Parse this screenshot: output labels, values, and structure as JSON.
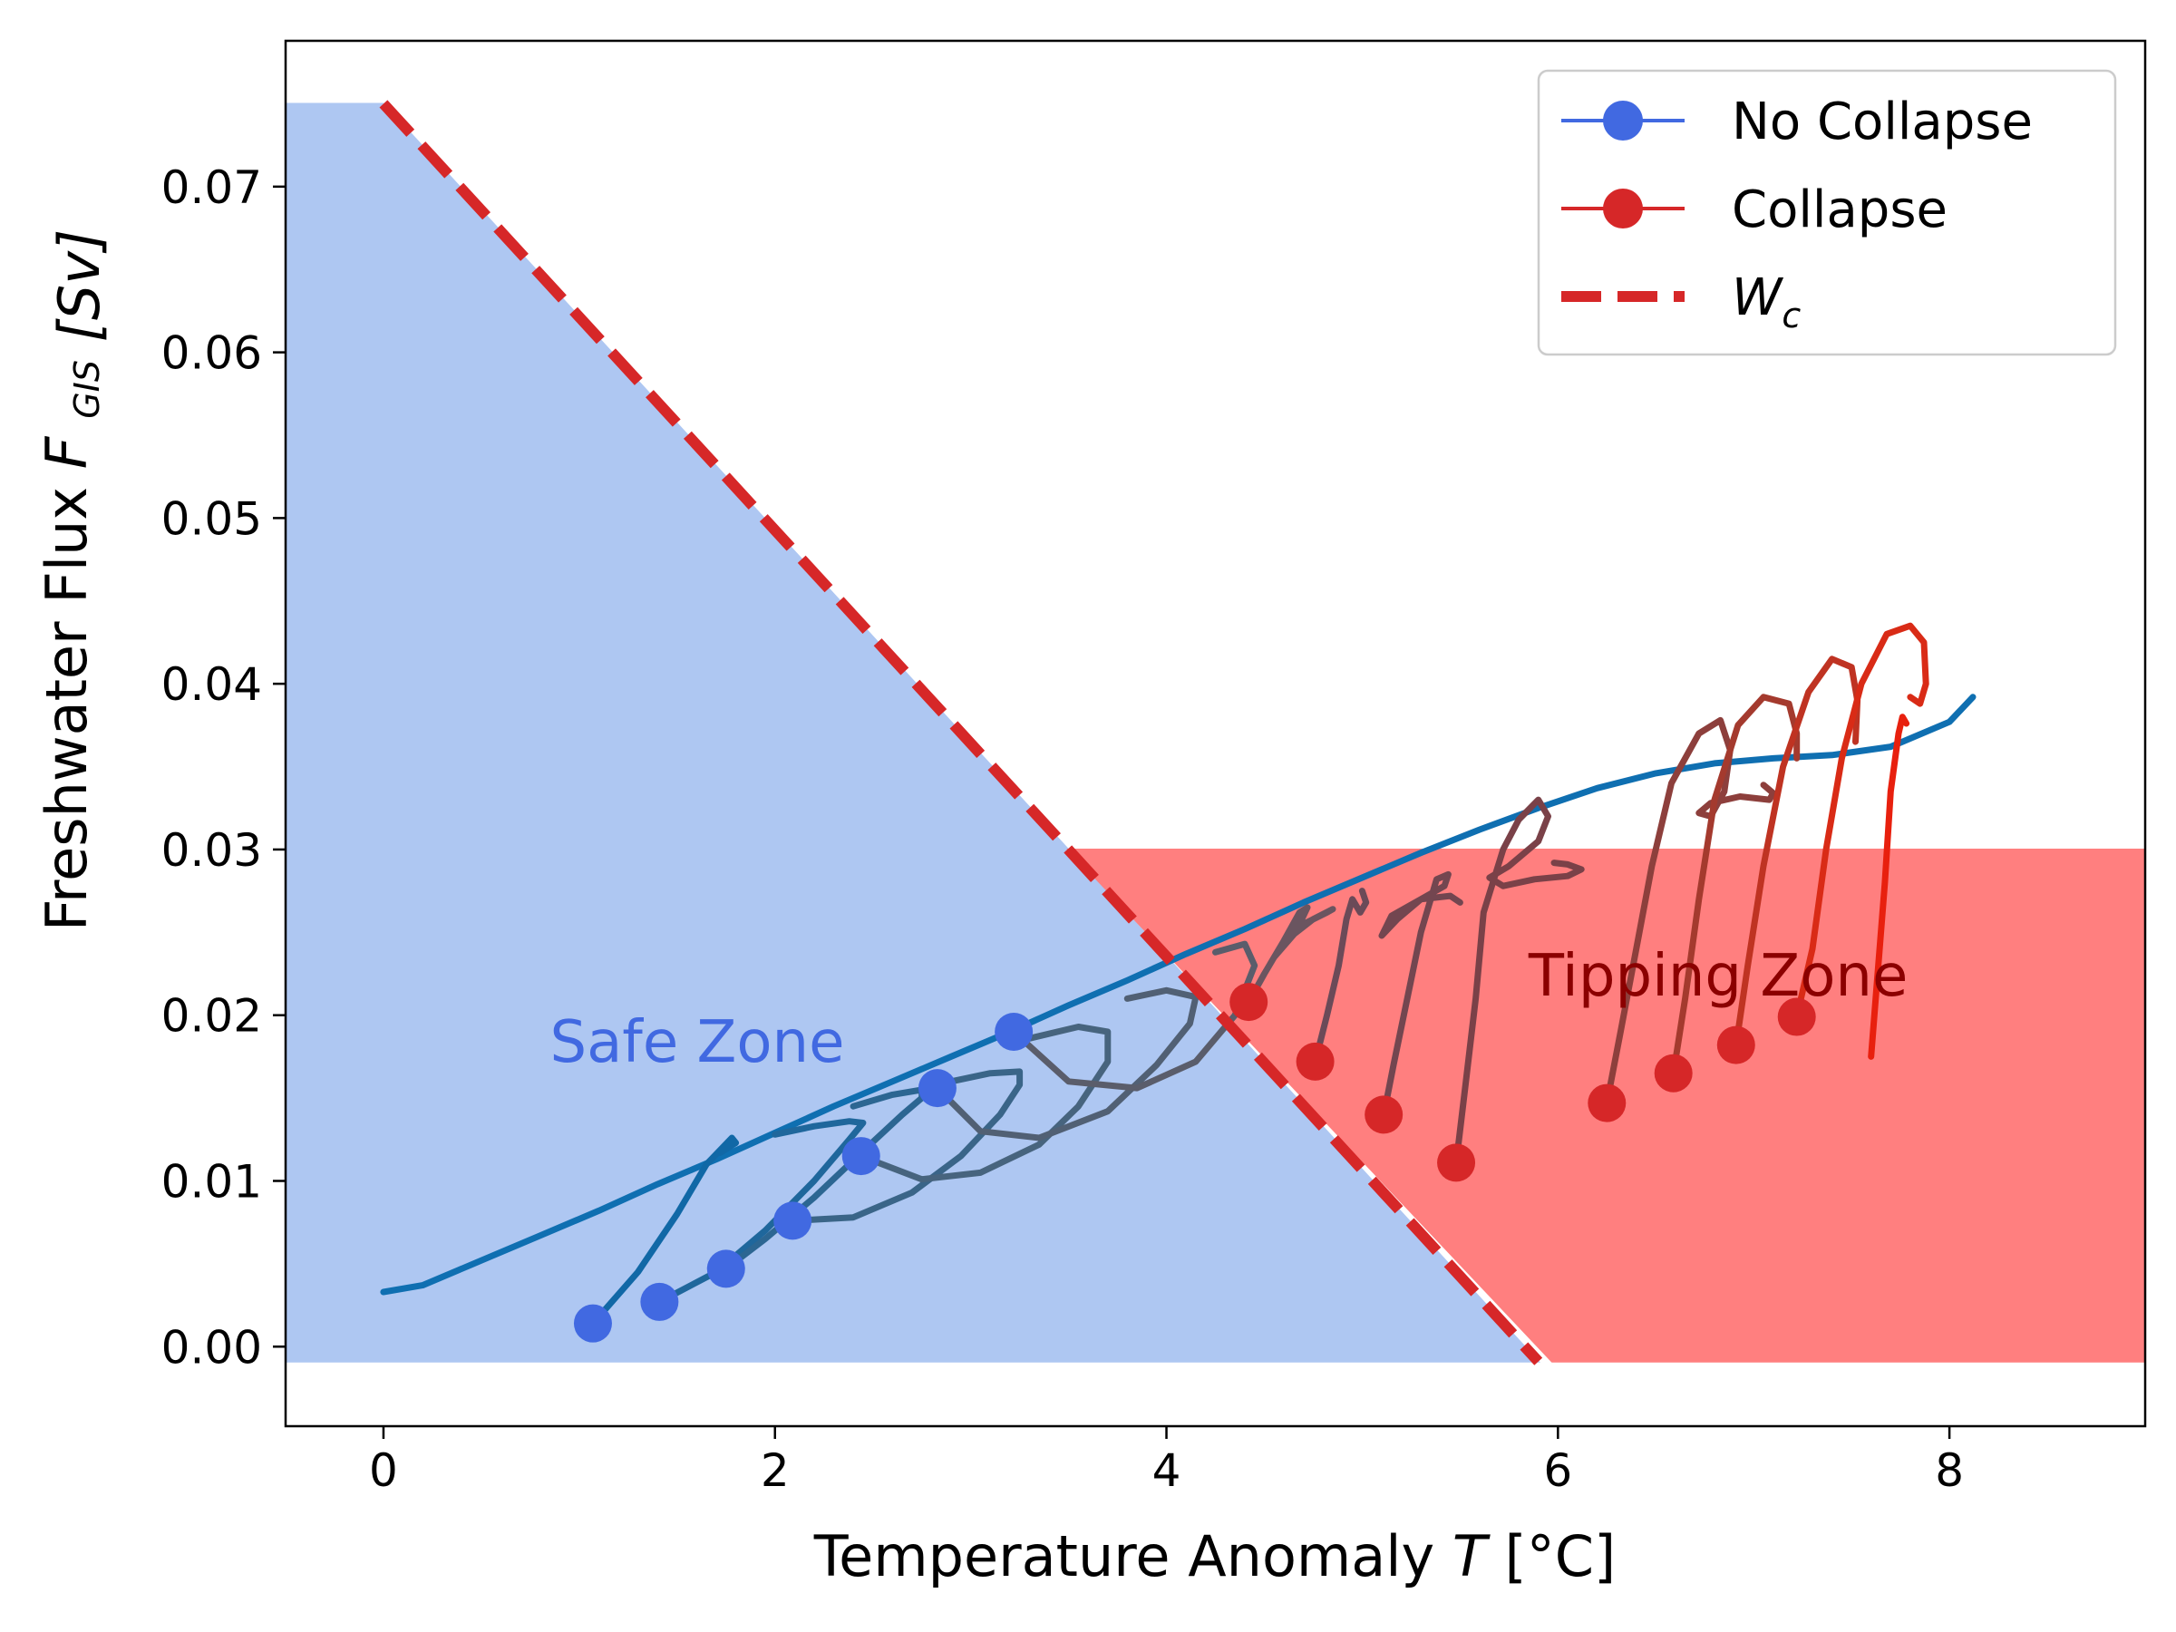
{
  "chart_data": {
    "type": "line",
    "xlabel": "Temperature Anomaly",
    "xlabel_var": "T",
    "xlabel_unit": "[°C]",
    "ylabel": "Freshwater Flux",
    "ylabel_var": "F",
    "ylabel_sub": "GIS",
    "ylabel_unit": "[Sv]",
    "xlim": [
      -0.5,
      9.0
    ],
    "ylim": [
      -0.0048,
      0.0788
    ],
    "x_ticks": [
      0,
      2,
      4,
      6,
      8
    ],
    "x_tick_labels": [
      "0",
      "2",
      "4",
      "6",
      "8"
    ],
    "y_ticks": [
      0.0,
      0.01,
      0.02,
      0.03,
      0.04,
      0.05,
      0.06,
      0.07
    ],
    "y_tick_labels": [
      "0.00",
      "0.01",
      "0.02",
      "0.03",
      "0.04",
      "0.05",
      "0.06",
      "0.07"
    ],
    "grid": false,
    "legend_position": "top-right",
    "legend": [
      {
        "label": "No Collapse",
        "kind": "line-marker",
        "color": "#4169e1"
      },
      {
        "label": "Collapse",
        "kind": "line-marker",
        "color": "#d62728"
      },
      {
        "label": "W",
        "sub": "c",
        "kind": "dashed",
        "color": "#d62728"
      }
    ],
    "regions": [
      {
        "label": "Safe Zone",
        "fill": "#aec7f2",
        "label_color": "#4169e1",
        "label_x": 0.85,
        "label_y": 0.0172,
        "polygon": [
          [
            -0.5,
            -0.0009
          ],
          [
            -0.5,
            0.075
          ],
          [
            0.0,
            0.075
          ],
          [
            5.9,
            -0.0009
          ]
        ]
      },
      {
        "label": "Tipping Zone",
        "fill": "#ff7f7f",
        "label_color": "#8b0000",
        "label_x": 5.85,
        "label_y": 0.0212,
        "polygon": [
          [
            3.5,
            0.03
          ],
          [
            9.0,
            0.03
          ],
          [
            9.0,
            -0.0009
          ],
          [
            5.97,
            -0.0009
          ],
          [
            3.5,
            0.03
          ]
        ]
      }
    ],
    "critical_line": {
      "label": "W_c",
      "color": "#d62728",
      "x": [
        0.0,
        5.9
      ],
      "y": [
        0.075,
        -0.0009
      ]
    },
    "main_trajectory": {
      "color": "#0f6fb1",
      "x": [
        0.0,
        0.2,
        0.5,
        0.8,
        1.1,
        1.4,
        1.7,
        2.0,
        2.3,
        2.6,
        2.9,
        3.2,
        3.5,
        3.8,
        4.1,
        4.4,
        4.7,
        5.0,
        5.3,
        5.6,
        5.9,
        6.2,
        6.5,
        6.8,
        7.1,
        7.4,
        7.7,
        8.0,
        8.12
      ],
      "y": [
        0.0033,
        0.0037,
        0.0052,
        0.0067,
        0.0082,
        0.0098,
        0.0113,
        0.0129,
        0.0145,
        0.016,
        0.0175,
        0.019,
        0.0206,
        0.0221,
        0.0237,
        0.0252,
        0.0268,
        0.0283,
        0.0298,
        0.0312,
        0.0325,
        0.0337,
        0.0346,
        0.0352,
        0.0355,
        0.0357,
        0.0362,
        0.0377,
        0.0392
      ]
    },
    "series": [
      {
        "name": "No Collapse",
        "color": "#4169e1",
        "points": [
          {
            "T": 1.07,
            "F": 0.0014,
            "line": "#1168a6"
          },
          {
            "T": 1.41,
            "F": 0.0027,
            "line": "#1f679c"
          },
          {
            "T": 1.75,
            "F": 0.0047,
            "line": "#2c6692"
          },
          {
            "T": 2.09,
            "F": 0.0076,
            "line": "#3a6588"
          },
          {
            "T": 2.44,
            "F": 0.0115,
            "line": "#47647e"
          },
          {
            "T": 2.83,
            "F": 0.0156,
            "line": "#516074"
          },
          {
            "T": 3.22,
            "F": 0.019,
            "line": "#5a5d6b"
          }
        ]
      },
      {
        "name": "Collapse",
        "color": "#d62728",
        "points": [
          {
            "T": 4.42,
            "F": 0.0208,
            "line": "#6a5560"
          },
          {
            "T": 4.76,
            "F": 0.0172,
            "line": "#6b4a58"
          },
          {
            "T": 5.11,
            "F": 0.014,
            "line": "#734650"
          },
          {
            "T": 5.48,
            "F": 0.0111,
            "line": "#7a4148"
          },
          {
            "T": 6.25,
            "F": 0.0147,
            "line": "#8d3f3c"
          },
          {
            "T": 6.59,
            "F": 0.0165,
            "line": "#a43a2e"
          },
          {
            "T": 6.91,
            "F": 0.0182,
            "line": "#bf3322"
          },
          {
            "T": 7.22,
            "F": 0.0199,
            "line": "#d92b16"
          }
        ]
      }
    ],
    "trajectories": [
      {
        "color": "#1168a6",
        "x": [
          1.07,
          1.3,
          1.5,
          1.65,
          1.78,
          1.8,
          1.72
        ],
        "y": [
          0.0014,
          0.0045,
          0.008,
          0.011,
          0.0126,
          0.0123,
          0.0117
        ]
      },
      {
        "color": "#1f679c",
        "x": [
          1.41,
          1.7,
          1.95,
          2.2,
          2.38,
          2.45,
          2.38,
          2.2,
          2.0
        ],
        "y": [
          0.0027,
          0.0045,
          0.007,
          0.01,
          0.0125,
          0.0135,
          0.0136,
          0.0133,
          0.0128
        ]
      },
      {
        "color": "#2c6692",
        "x": [
          1.75,
          1.95,
          2.2,
          2.45,
          2.65,
          2.75,
          2.75,
          2.6,
          2.4
        ],
        "y": [
          0.0047,
          0.0065,
          0.009,
          0.0118,
          0.014,
          0.015,
          0.0155,
          0.0152,
          0.0145
        ]
      },
      {
        "color": "#3a6588",
        "x": [
          2.09,
          2.4,
          2.7,
          2.95,
          3.15,
          3.25,
          3.25,
          3.1,
          2.9
        ],
        "y": [
          0.0076,
          0.0078,
          0.0093,
          0.0115,
          0.014,
          0.0158,
          0.0166,
          0.0165,
          0.016
        ]
      },
      {
        "color": "#47647e",
        "x": [
          2.44,
          2.75,
          3.05,
          3.35,
          3.55,
          3.7,
          3.7,
          3.55,
          3.3
        ],
        "y": [
          0.0115,
          0.0101,
          0.0105,
          0.0122,
          0.0145,
          0.0172,
          0.019,
          0.0193,
          0.0186
        ]
      },
      {
        "color": "#516074",
        "x": [
          2.83,
          3.05,
          3.35,
          3.7,
          3.95,
          4.12,
          4.15,
          4.0,
          3.8
        ],
        "y": [
          0.0156,
          0.013,
          0.0126,
          0.0142,
          0.017,
          0.0195,
          0.0211,
          0.0215,
          0.021
        ]
      },
      {
        "color": "#5a5d6b",
        "x": [
          3.22,
          3.5,
          3.85,
          4.15,
          4.35,
          4.45,
          4.4,
          4.25
        ],
        "y": [
          0.019,
          0.016,
          0.0156,
          0.0172,
          0.02,
          0.023,
          0.0243,
          0.0238
        ]
      },
      {
        "color": "#6a5560",
        "x": [
          4.42,
          4.5,
          4.6,
          4.68,
          4.72,
          4.66,
          4.55,
          4.62,
          4.75,
          4.85,
          4.82,
          4.7
        ],
        "y": [
          0.0208,
          0.0225,
          0.0245,
          0.0262,
          0.0265,
          0.025,
          0.0235,
          0.0246,
          0.0258,
          0.0264,
          0.0262,
          0.0255
        ]
      },
      {
        "color": "#6b4a58",
        "x": [
          4.76,
          4.82,
          4.88,
          4.92,
          4.95,
          4.99,
          5.02,
          5.0
        ],
        "y": [
          0.0172,
          0.02,
          0.023,
          0.0258,
          0.027,
          0.0262,
          0.0268,
          0.0275
        ]
      },
      {
        "color": "#734650",
        "x": [
          5.11,
          5.16,
          5.23,
          5.3,
          5.38,
          5.44,
          5.42,
          5.3,
          5.18,
          5.1,
          5.15,
          5.3,
          5.45,
          5.5
        ],
        "y": [
          0.014,
          0.017,
          0.021,
          0.025,
          0.0282,
          0.0285,
          0.0278,
          0.027,
          0.0258,
          0.0248,
          0.026,
          0.027,
          0.0272,
          0.0268
        ]
      },
      {
        "color": "#7a4148",
        "x": [
          5.48,
          5.53,
          5.58,
          5.62,
          5.72,
          5.8,
          5.9,
          5.95,
          5.9,
          5.75,
          5.65,
          5.72,
          5.88,
          6.05,
          6.12,
          6.05,
          5.98
        ],
        "y": [
          0.0111,
          0.016,
          0.021,
          0.0262,
          0.03,
          0.0318,
          0.033,
          0.032,
          0.0305,
          0.029,
          0.0283,
          0.0278,
          0.0282,
          0.0284,
          0.0288,
          0.0291,
          0.0292
        ]
      },
      {
        "color": "#8d3f3c",
        "x": [
          6.25,
          6.32,
          6.4,
          6.48,
          6.58,
          6.72,
          6.83,
          6.88,
          6.85,
          6.78,
          6.72,
          6.78,
          6.93,
          7.08,
          7.1,
          7.05
        ],
        "y": [
          0.0147,
          0.019,
          0.024,
          0.029,
          0.034,
          0.037,
          0.0378,
          0.036,
          0.0335,
          0.032,
          0.0322,
          0.0328,
          0.0332,
          0.033,
          0.0334,
          0.0339
        ]
      },
      {
        "color": "#a43a2e",
        "x": [
          6.59,
          6.65,
          6.72,
          6.8,
          6.92,
          7.05,
          7.18,
          7.22,
          7.22
        ],
        "y": [
          0.0165,
          0.021,
          0.027,
          0.033,
          0.0375,
          0.0392,
          0.0388,
          0.037,
          0.0355
        ]
      },
      {
        "color": "#bf3322",
        "x": [
          6.91,
          6.97,
          7.05,
          7.15,
          7.28,
          7.4,
          7.5,
          7.53,
          7.52
        ],
        "y": [
          0.0182,
          0.023,
          0.029,
          0.035,
          0.0395,
          0.0415,
          0.041,
          0.039,
          0.0365
        ]
      },
      {
        "color": "#d92b16",
        "x": [
          7.22,
          7.3,
          7.37,
          7.45,
          7.55,
          7.68,
          7.8,
          7.87,
          7.88,
          7.85,
          7.8
        ],
        "y": [
          0.0199,
          0.024,
          0.03,
          0.0355,
          0.04,
          0.043,
          0.0435,
          0.0425,
          0.04,
          0.0388,
          0.0392
        ]
      },
      {
        "color": "#e8200e",
        "x": [
          7.6,
          7.63,
          7.67,
          7.7,
          7.74,
          7.76,
          7.78
        ],
        "y": [
          0.0175,
          0.022,
          0.028,
          0.0335,
          0.037,
          0.038,
          0.0376
        ]
      }
    ]
  }
}
